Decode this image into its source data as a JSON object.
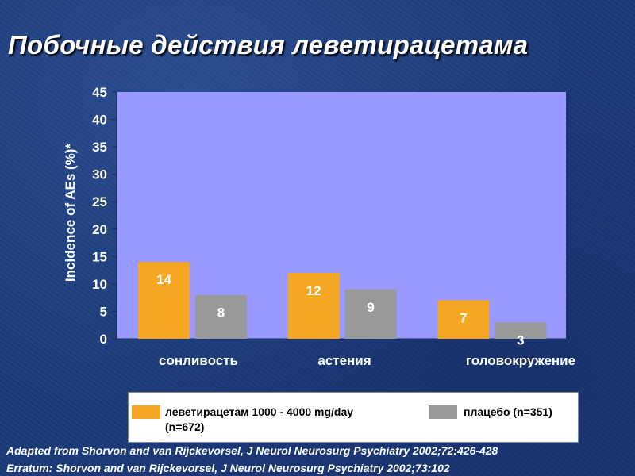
{
  "slide": {
    "title": "Побочные действия леветирацетама"
  },
  "chart_data": {
    "type": "bar",
    "title": "",
    "ylabel": "Incidence of AEs (%)*",
    "xlabel": "",
    "ylim": [
      0,
      45
    ],
    "yticks": [
      0,
      5,
      10,
      15,
      20,
      25,
      30,
      35,
      40,
      45
    ],
    "categories": [
      "сонливость",
      "астения",
      "головокружение"
    ],
    "series": [
      {
        "name": "леветирацетам 1000 - 4000 mg/day (n=672)",
        "color": "#f5a623",
        "values": [
          14,
          12,
          7
        ]
      },
      {
        "name": "плацебо (n=351)",
        "color": "#999999",
        "values": [
          8,
          9,
          3
        ]
      }
    ],
    "plot_color": "#9999ff",
    "legend_position": "bottom",
    "grid": false
  },
  "legend": {
    "drug_line1": "леветирацетам 1000 - 4000 mg/day",
    "drug_line2": "(n=672)",
    "placebo": "плацебо (n=351)"
  },
  "citation": {
    "line1": "Adapted from Shorvon and van Rijckevorsel, J Neurol Neurosurg Psychiatry 2002;72:426-428",
    "line2": "Erratum: Shorvon and van Rijckevorsel, J Neurol Neurosurg Psychiatry 2002;73:102"
  }
}
